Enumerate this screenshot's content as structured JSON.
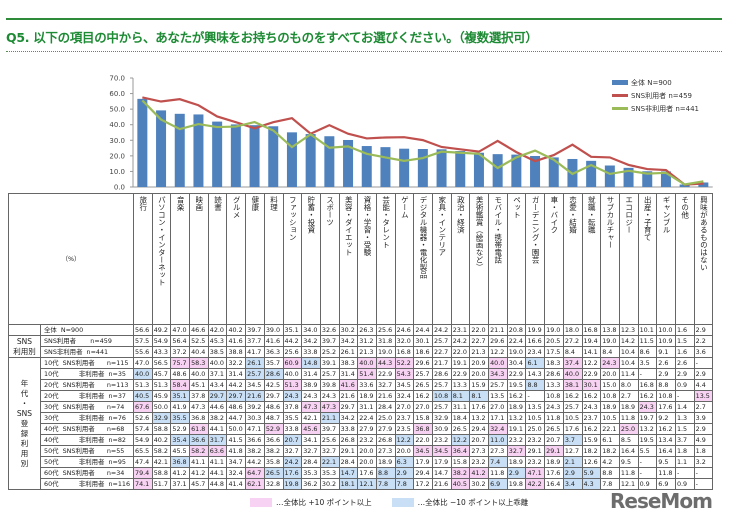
{
  "title": "Q5. 以下の項目の中から、あなたが興味をお持ちのものをすべてお選びください。（複数選択可）",
  "colors": {
    "bar": "#4f81bd",
    "sns_user": "#c0504d",
    "sns_nonuser": "#9bbb59",
    "plus10": "#f8d2f2",
    "minus10": "#c8dff5",
    "title": "#1d8a34"
  },
  "chart_data": {
    "type": "bar+line",
    "ylim": [
      0,
      70
    ],
    "yticks": [
      "0.0",
      "10.0",
      "20.0",
      "30.0",
      "40.0",
      "50.0",
      "60.0",
      "70.0"
    ],
    "legend_position": "top-right",
    "categories": [
      "旅行",
      "パソコン・インターネット",
      "音楽",
      "映画",
      "読書",
      "グルメ",
      "健康",
      "料理",
      "ファッション",
      "貯蓄・投資",
      "スポーツ",
      "美容・ダイエット",
      "資格・学習・受験",
      "芸能・タレント",
      "ゲーム",
      "デジタル機器・電化製品",
      "家具・インテリア",
      "政治・経済",
      "美術鑑賞（絵画など）",
      "モバイル・携帯電話",
      "ペット",
      "ガーデニング・園芸",
      "車・バイク",
      "恋愛・結婚",
      "就職・転職",
      "サブカルチャー",
      "エコロジー",
      "出産・子育て",
      "ギャンブル",
      "その他",
      "興味があるものはない"
    ],
    "series": [
      {
        "name": "全体 N=900",
        "kind": "bar",
        "values": [
          56.6,
          49.2,
          47.0,
          46.6,
          42.0,
          40.2,
          39.7,
          39.0,
          35.1,
          34.0,
          32.6,
          30.2,
          26.3,
          25.6,
          24.6,
          24.4,
          24.2,
          23.1,
          22.0,
          21.1,
          20.8,
          19.9,
          19.0,
          18.0,
          16.8,
          13.8,
          12.3,
          10.1,
          10.0,
          1.6,
          2.9
        ]
      },
      {
        "name": "SNS利用者 n=459",
        "kind": "line",
        "values": [
          57.5,
          54.9,
          56.4,
          52.5,
          45.3,
          41.6,
          37.7,
          41.6,
          44.2,
          34.2,
          39.7,
          34.2,
          31.2,
          31.8,
          32.0,
          30.1,
          25.7,
          24.2,
          22.7,
          29.6,
          22.4,
          16.6,
          20.5,
          27.2,
          19.4,
          19.0,
          14.2,
          11.5,
          10.9,
          1.5,
          2.2
        ]
      },
      {
        "name": "SNS非利用者 n=441",
        "kind": "line",
        "values": [
          55.6,
          43.3,
          37.2,
          40.4,
          38.5,
          38.8,
          41.7,
          36.3,
          25.6,
          33.8,
          25.2,
          26.1,
          21.3,
          19.0,
          16.8,
          18.6,
          22.7,
          22.0,
          21.3,
          12.2,
          19.0,
          23.4,
          17.5,
          8.4,
          14.1,
          8.4,
          10.4,
          8.6,
          9.1,
          1.6,
          3.6
        ]
      }
    ]
  },
  "table": {
    "unit_label": "（%）",
    "groups": [
      {
        "label": "SNS\n利用別"
      },
      {
        "label": "年\n代\n・\nSNS\n登\n録\n利\n用\n別"
      }
    ],
    "rows": [
      {
        "label": "全体  N=900",
        "values": [
          "56.6",
          "49.2",
          "47.0",
          "46.6",
          "42.0",
          "40.2",
          "39.7",
          "39.0",
          "35.1",
          "34.0",
          "32.6",
          "30.2",
          "26.3",
          "25.6",
          "24.6",
          "24.4",
          "24.2",
          "23.1",
          "22.0",
          "21.1",
          "20.8",
          "19.9",
          "19.0",
          "18.0",
          "16.8",
          "13.8",
          "12.3",
          "10.1",
          "10.0",
          "1.6",
          "2.9"
        ]
      },
      {
        "label": "SNS利用者       n=459",
        "values": [
          "57.5",
          "54.9",
          "56.4",
          "52.5",
          "45.3",
          "41.6",
          "37.7",
          "41.6",
          "44.2",
          "34.2",
          "39.7",
          "34.2",
          "31.2",
          "31.8",
          "32.0",
          "30.1",
          "25.7",
          "24.2",
          "22.7",
          "29.6",
          "22.4",
          "16.6",
          "20.5",
          "27.2",
          "19.4",
          "19.0",
          "14.2",
          "11.5",
          "10.9",
          "1.5",
          "2.2"
        ]
      },
      {
        "label": "SNS非利用者  n=441",
        "values": [
          "55.6",
          "43.3",
          "37.2",
          "40.4",
          "38.5",
          "38.8",
          "41.7",
          "36.3",
          "25.6",
          "33.8",
          "25.2",
          "26.1",
          "21.3",
          "19.0",
          "16.8",
          "18.6",
          "22.7",
          "22.0",
          "21.3",
          "12.2",
          "19.0",
          "23.4",
          "17.5",
          "8.4",
          "14.1",
          "8.4",
          "10.4",
          "8.6",
          "9.1",
          "1.6",
          "3.6"
        ]
      },
      {
        "label": "10代  SNS利用者      n=115",
        "values": [
          "47.0",
          "56.5",
          "75.7",
          "58.3",
          "40.0",
          "32.2",
          "26.1",
          "35.7",
          "60.9",
          "14.8",
          "39.1",
          "38.3",
          "40.0",
          "44.3",
          "52.2",
          "29.6",
          "21.7",
          "19.1",
          "20.9",
          "40.0",
          "30.4",
          "6.1",
          "18.3",
          "37.4",
          "12.2",
          "24.3",
          "10.4",
          "3.5",
          "2.6",
          "2.6",
          "-"
        ]
      },
      {
        "label": "10代          非利用者  n=35",
        "values": [
          "40.0",
          "45.7",
          "48.6",
          "40.0",
          "37.1",
          "31.4",
          "25.7",
          "28.6",
          "40.0",
          "31.4",
          "25.7",
          "31.4",
          "51.4",
          "22.9",
          "54.3",
          "25.7",
          "28.6",
          "22.9",
          "20.0",
          "34.3",
          "22.9",
          "14.3",
          "28.6",
          "40.0",
          "22.9",
          "20.0",
          "11.4",
          "-",
          "2.9",
          "2.9",
          "2.9"
        ]
      },
      {
        "label": "20代  SNS利用者      n=113",
        "values": [
          "51.3",
          "51.3",
          "58.4",
          "45.1",
          "43.4",
          "44.2",
          "34.5",
          "42.5",
          "51.3",
          "38.9",
          "39.8",
          "41.6",
          "33.6",
          "32.7",
          "34.5",
          "26.5",
          "25.7",
          "13.3",
          "15.9",
          "25.7",
          "19.5",
          "8.8",
          "13.3",
          "38.1",
          "30.1",
          "15.0",
          "8.0",
          "16.8",
          "8.8",
          "0.9",
          "4.4"
        ]
      },
      {
        "label": "20代          非利用者  n=37",
        "values": [
          "40.5",
          "45.9",
          "35.1",
          "37.8",
          "29.7",
          "29.7",
          "21.6",
          "29.7",
          "24.3",
          "24.3",
          "24.3",
          "21.6",
          "18.9",
          "21.6",
          "32.4",
          "16.2",
          "10.8",
          "8.1",
          "8.1",
          "13.5",
          "16.2",
          "-",
          "10.8",
          "16.2",
          "16.2",
          "10.8",
          "2.7",
          "16.2",
          "10.8",
          "-",
          "13.5"
        ]
      },
      {
        "label": "30代  SNS利用者      n=74",
        "values": [
          "67.6",
          "50.0",
          "41.9",
          "47.3",
          "44.6",
          "48.6",
          "39.2",
          "48.6",
          "37.8",
          "47.3",
          "47.3",
          "29.7",
          "31.1",
          "28.4",
          "27.0",
          "27.0",
          "25.7",
          "31.1",
          "17.6",
          "27.0",
          "18.9",
          "13.5",
          "24.3",
          "25.7",
          "24.3",
          "18.9",
          "18.9",
          "24.3",
          "17.6",
          "1.4",
          "2.7"
        ]
      },
      {
        "label": "30代          非利用者  n=76",
        "values": [
          "52.6",
          "32.9",
          "35.5",
          "36.8",
          "38.2",
          "44.7",
          "30.3",
          "48.7",
          "35.5",
          "42.1",
          "21.1",
          "34.2",
          "22.4",
          "25.0",
          "23.7",
          "15.8",
          "32.9",
          "18.4",
          "13.2",
          "17.1",
          "13.2",
          "10.5",
          "11.8",
          "10.5",
          "23.7",
          "10.5",
          "11.8",
          "19.7",
          "9.2",
          "1.3",
          "3.9"
        ]
      },
      {
        "label": "40代  SNS利用者      n=68",
        "values": [
          "57.4",
          "58.8",
          "52.9",
          "61.8",
          "44.1",
          "50.0",
          "47.1",
          "52.9",
          "33.8",
          "45.6",
          "39.7",
          "33.8",
          "27.9",
          "27.9",
          "23.5",
          "36.8",
          "30.9",
          "26.5",
          "29.4",
          "32.4",
          "19.1",
          "25.0",
          "26.5",
          "17.6",
          "16.2",
          "22.1",
          "25.0",
          "13.2",
          "16.2",
          "1.5",
          "2.9"
        ]
      },
      {
        "label": "40代          非利用者  n=82",
        "values": [
          "54.9",
          "40.2",
          "35.4",
          "36.6",
          "31.7",
          "41.5",
          "36.6",
          "36.6",
          "20.7",
          "34.1",
          "25.6",
          "26.8",
          "23.2",
          "26.8",
          "12.2",
          "22.0",
          "23.2",
          "12.2",
          "20.7",
          "11.0",
          "23.2",
          "23.2",
          "20.7",
          "3.7",
          "15.9",
          "6.1",
          "8.5",
          "19.5",
          "13.4",
          "3.7",
          "4.9"
        ]
      },
      {
        "label": "50代  SNS利用者      n=55",
        "values": [
          "65.5",
          "58.2",
          "45.5",
          "58.2",
          "63.6",
          "41.8",
          "38.2",
          "38.2",
          "32.7",
          "32.7",
          "32.7",
          "29.1",
          "20.0",
          "27.3",
          "20.0",
          "34.5",
          "34.5",
          "36.4",
          "27.3",
          "27.3",
          "32.7",
          "29.1",
          "29.1",
          "12.7",
          "18.2",
          "18.2",
          "16.4",
          "5.5",
          "16.4",
          "1.8",
          "1.8"
        ]
      },
      {
        "label": "50代          非利用者  n=95",
        "values": [
          "47.4",
          "42.1",
          "36.8",
          "41.1",
          "41.1",
          "34.7",
          "44.2",
          "35.8",
          "24.2",
          "28.4",
          "22.1",
          "28.4",
          "20.0",
          "18.9",
          "6.3",
          "17.9",
          "17.9",
          "15.8",
          "23.2",
          "7.4",
          "18.9",
          "23.2",
          "18.9",
          "2.1",
          "12.6",
          "4.2",
          "9.5",
          "-",
          "9.5",
          "1.1",
          "3.2"
        ]
      },
      {
        "label": "60代  SNS利用者      n=34",
        "values": [
          "79.4",
          "58.8",
          "41.2",
          "41.2",
          "44.1",
          "32.4",
          "64.7",
          "26.5",
          "17.6",
          "35.3",
          "35.3",
          "14.7",
          "17.6",
          "8.8",
          "2.9",
          "29.4",
          "14.7",
          "38.2",
          "41.2",
          "11.8",
          "2.9",
          "47.1",
          "17.6",
          "2.9",
          "5.9",
          "8.8",
          "11.8",
          "-",
          "11.8",
          "-",
          "-"
        ]
      },
      {
        "label": "60代          非利用者  n=116",
        "values": [
          "74.1",
          "51.7",
          "37.1",
          "45.7",
          "44.8",
          "41.4",
          "62.1",
          "32.8",
          "19.8",
          "36.2",
          "30.2",
          "18.1",
          "12.1",
          "7.8",
          "7.8",
          "17.2",
          "21.6",
          "40.5",
          "30.2",
          "6.9",
          "19.8",
          "42.2",
          "16.4",
          "3.4",
          "4.3",
          "7.8",
          "12.1",
          "0.9",
          "6.9",
          "0.9",
          "-"
        ]
      }
    ]
  },
  "footer_legend": {
    "plus": "…全体比 +10 ポイント以上",
    "minus": "…全体比 −10 ポイント以上乖離"
  },
  "watermark": "ReseMom"
}
